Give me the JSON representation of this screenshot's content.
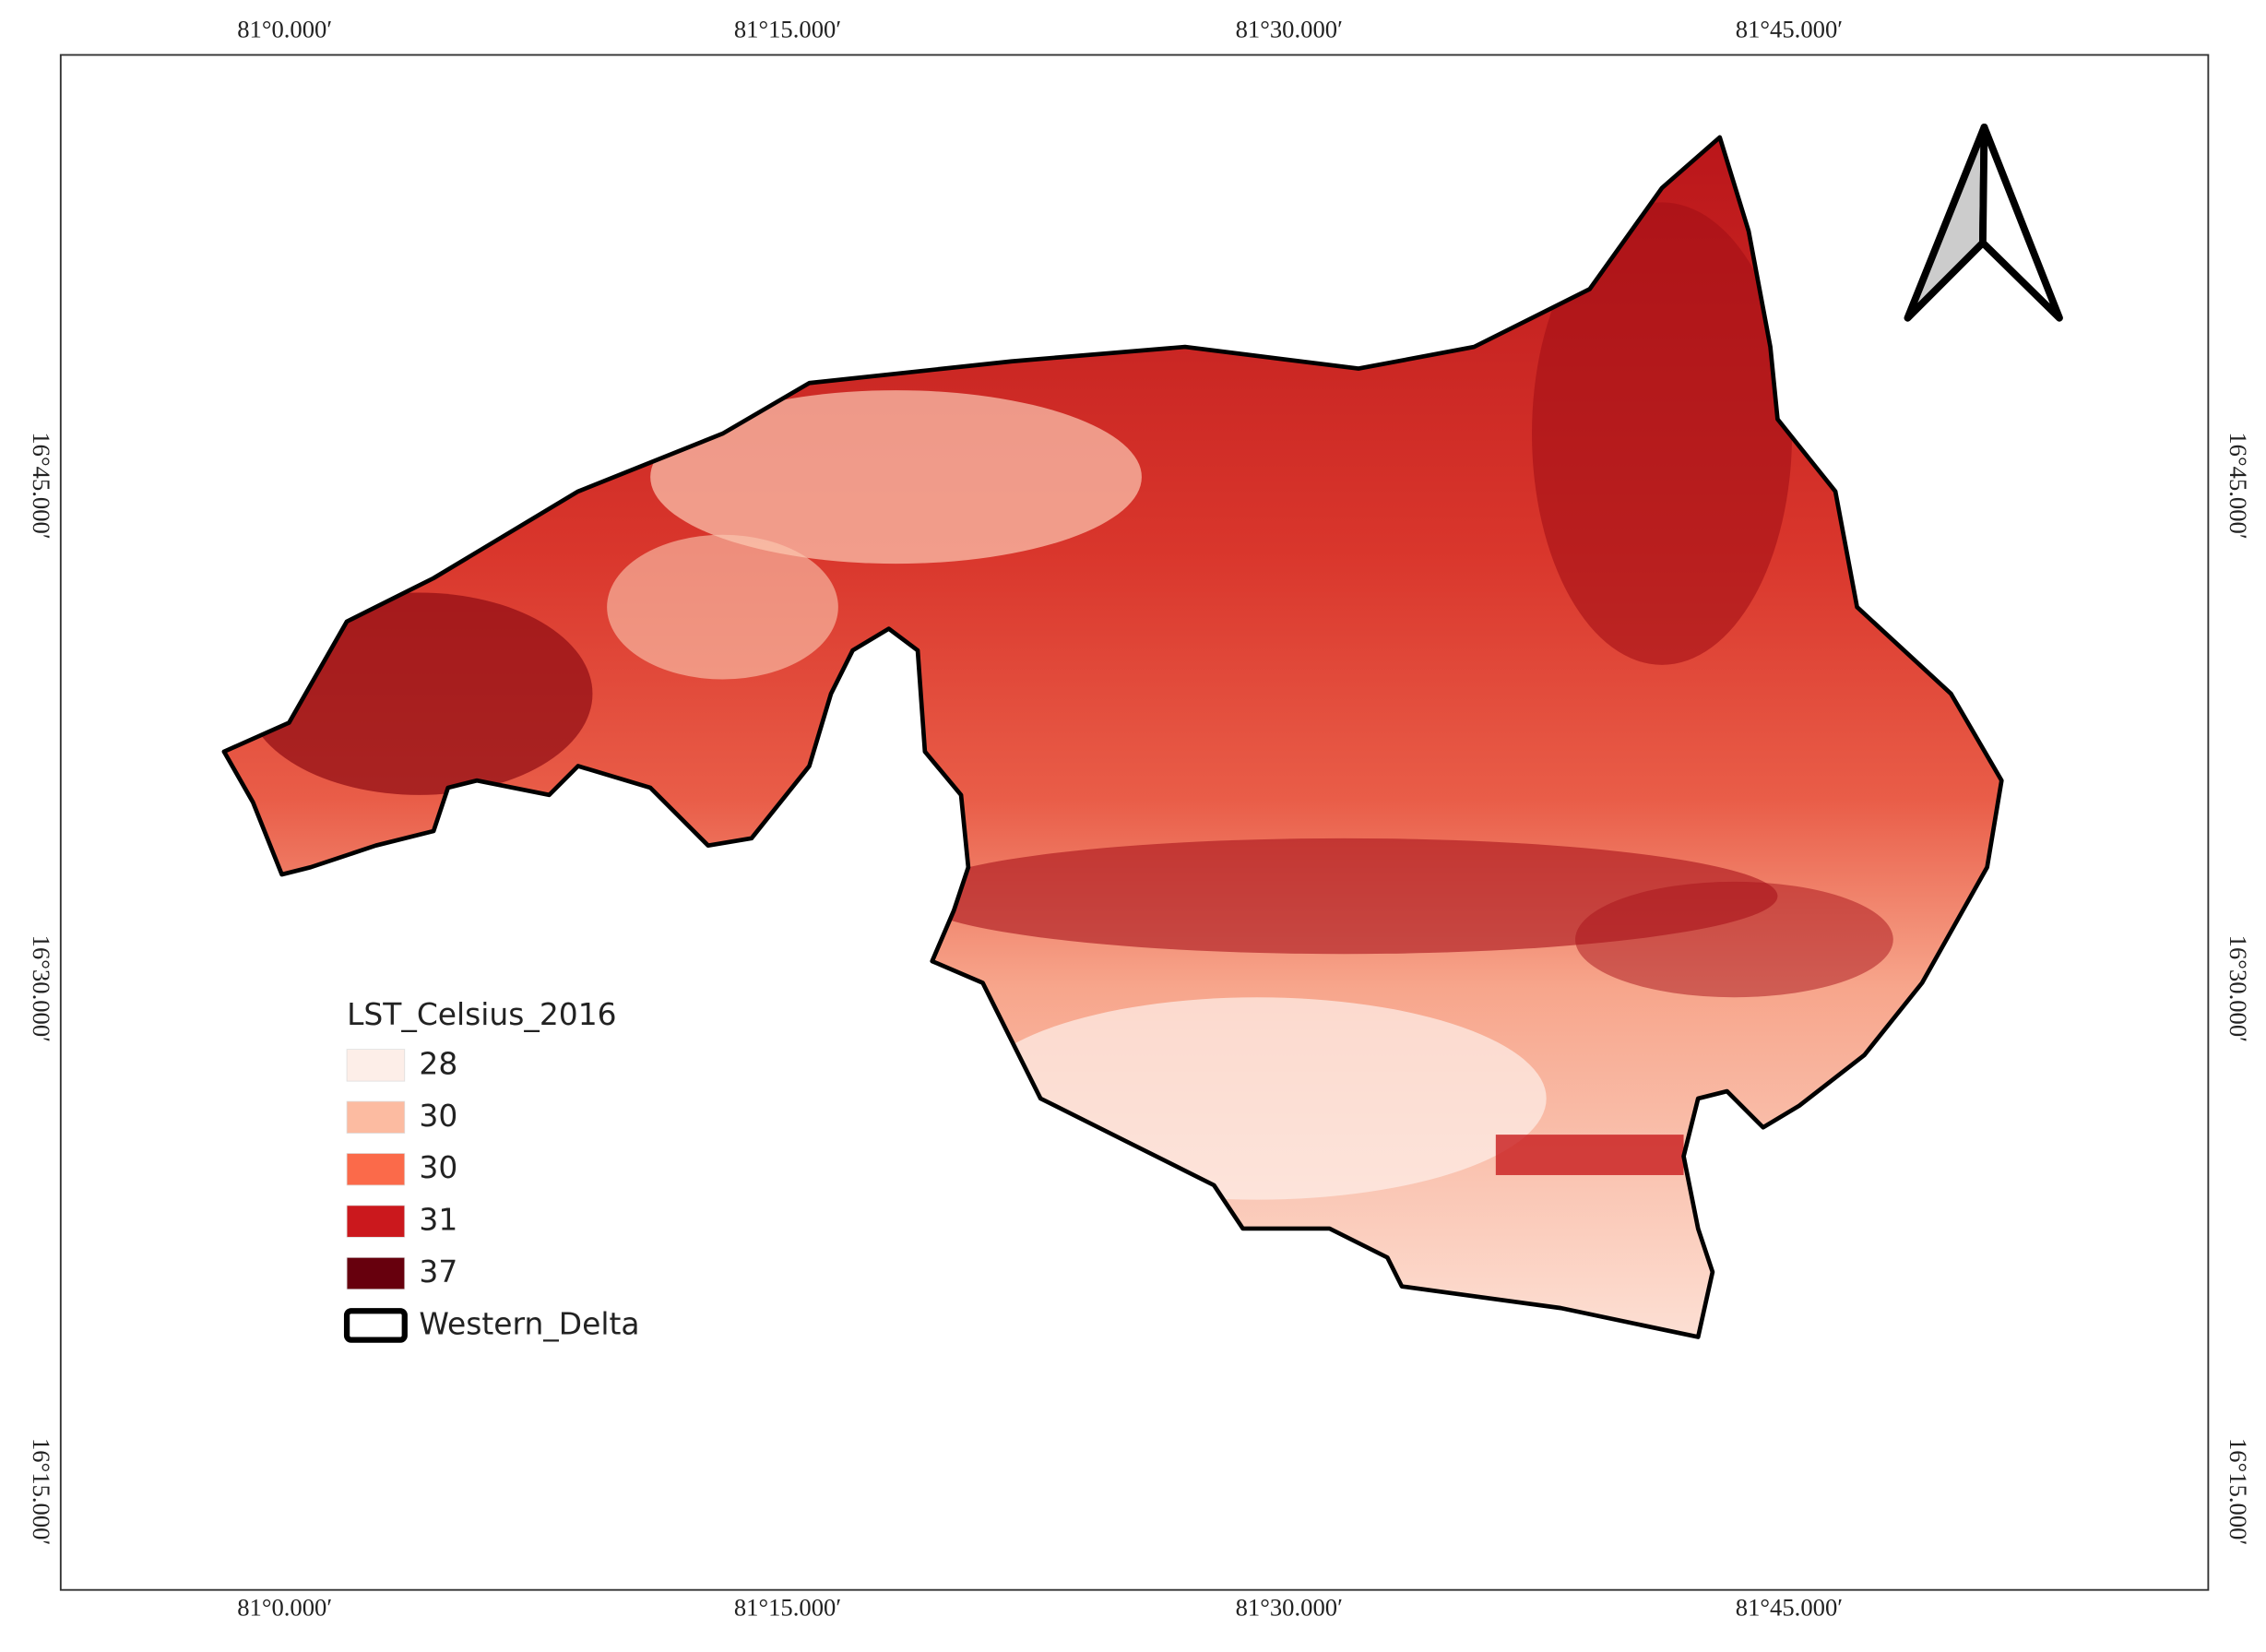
{
  "frame": {
    "top_labels": [
      "81°0.000′",
      "81°15.000′",
      "81°30.000′",
      "81°45.000′"
    ],
    "bottom_labels": [
      "81°0.000′",
      "81°15.000′",
      "81°30.000′",
      "81°45.000′"
    ],
    "left_labels": [
      "16°45.000′",
      "16°30.000′",
      "16°15.000′"
    ],
    "right_labels": [
      "16°45.000′",
      "16°30.000′",
      "16°15.000′"
    ]
  },
  "legend": {
    "title": "LST_Celsius_2016",
    "items": [
      {
        "label": "28",
        "color": "#fdeee8"
      },
      {
        "label": "30",
        "color": "#fcbba1"
      },
      {
        "label": "30",
        "color": "#fb6a4a"
      },
      {
        "label": "31",
        "color": "#cb181d"
      },
      {
        "label": "37",
        "color": "#67000d"
      }
    ],
    "boundary": {
      "label": "Western_Delta"
    }
  }
}
